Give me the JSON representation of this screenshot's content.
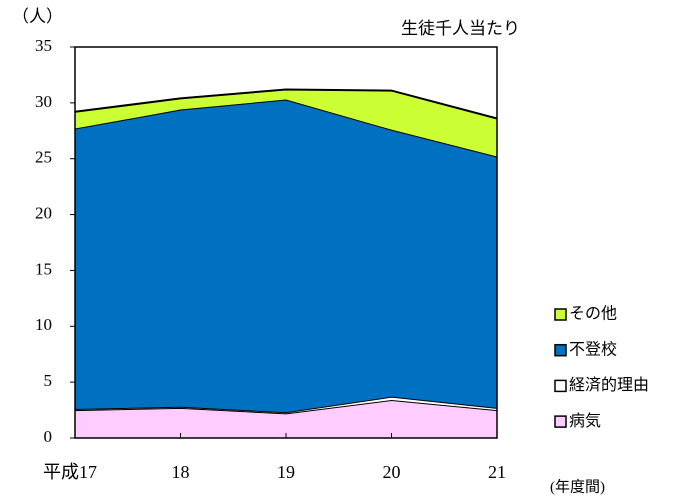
{
  "chart_data": {
    "type": "stacked_area",
    "y_unit_label": "（人）",
    "subtitle": "生徒千人当たり",
    "x_unit_label": "(年度間)",
    "categories": [
      "平成17",
      "18",
      "19",
      "20",
      "21"
    ],
    "series": [
      {
        "name": "病気",
        "color": "#ffccff",
        "values": [
          2.5,
          2.7,
          2.2,
          3.4,
          2.5
        ]
      },
      {
        "name": "経済的理由",
        "color": "#ffffff",
        "values": [
          0.1,
          0.1,
          0.1,
          0.3,
          0.2
        ]
      },
      {
        "name": "不登校",
        "color": "#0070c0",
        "values": [
          25.1,
          26.6,
          28.0,
          23.9,
          22.5
        ]
      },
      {
        "name": "その他",
        "color": "#ccff33",
        "values": [
          1.5,
          1.0,
          0.9,
          3.5,
          3.4
        ]
      }
    ],
    "ylim": [
      0,
      35
    ],
    "yticks": [
      0,
      5,
      10,
      15,
      20,
      25,
      30,
      35
    ],
    "legend": "right"
  }
}
